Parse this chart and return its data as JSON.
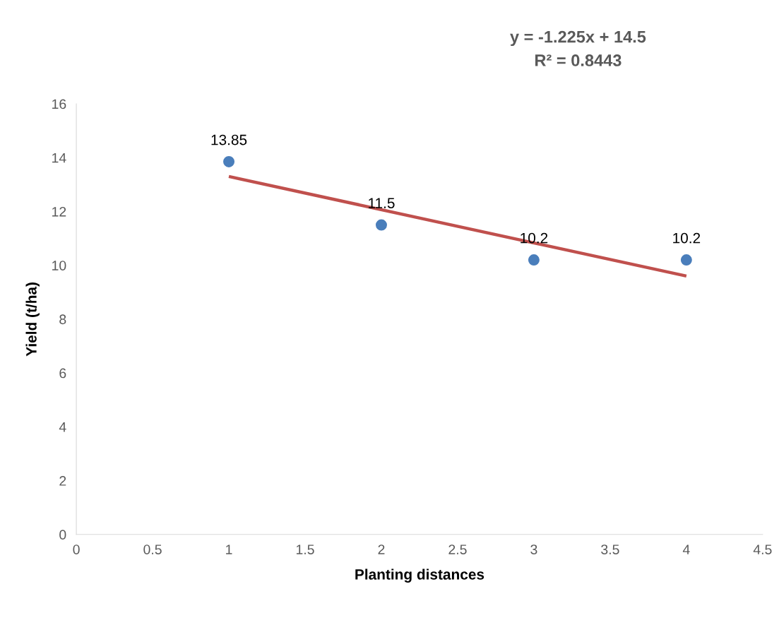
{
  "chart_data": {
    "type": "scatter",
    "xlabel": "Planting distances",
    "ylabel": "Yield (t/ha)",
    "series": [
      {
        "color": "#4a7ebb",
        "x": [
          1,
          2,
          3,
          4
        ],
        "values": [
          13.85,
          11.5,
          10.2,
          10.2
        ],
        "value_labels": [
          "13.85",
          "11.5",
          "10.2",
          "10.2"
        ],
        "marker": "circle"
      },
      {
        "type": "line",
        "color": "#c0504d",
        "x": [
          1,
          4
        ],
        "values": [
          13.3,
          9.6
        ],
        "marker": "none"
      }
    ],
    "annotations": [
      "y = -1.225x + 14.5",
      "R² = 0.8443"
    ],
    "xlim": [
      0,
      4.5
    ],
    "xticks": [
      0,
      0.5,
      1,
      1.5,
      2,
      2.5,
      3,
      3.5,
      4,
      4.5
    ],
    "ylim": [
      0,
      16
    ],
    "yticks": [
      0,
      2,
      4,
      6,
      8,
      10,
      12,
      14,
      16
    ],
    "grid": false,
    "legend": false
  }
}
